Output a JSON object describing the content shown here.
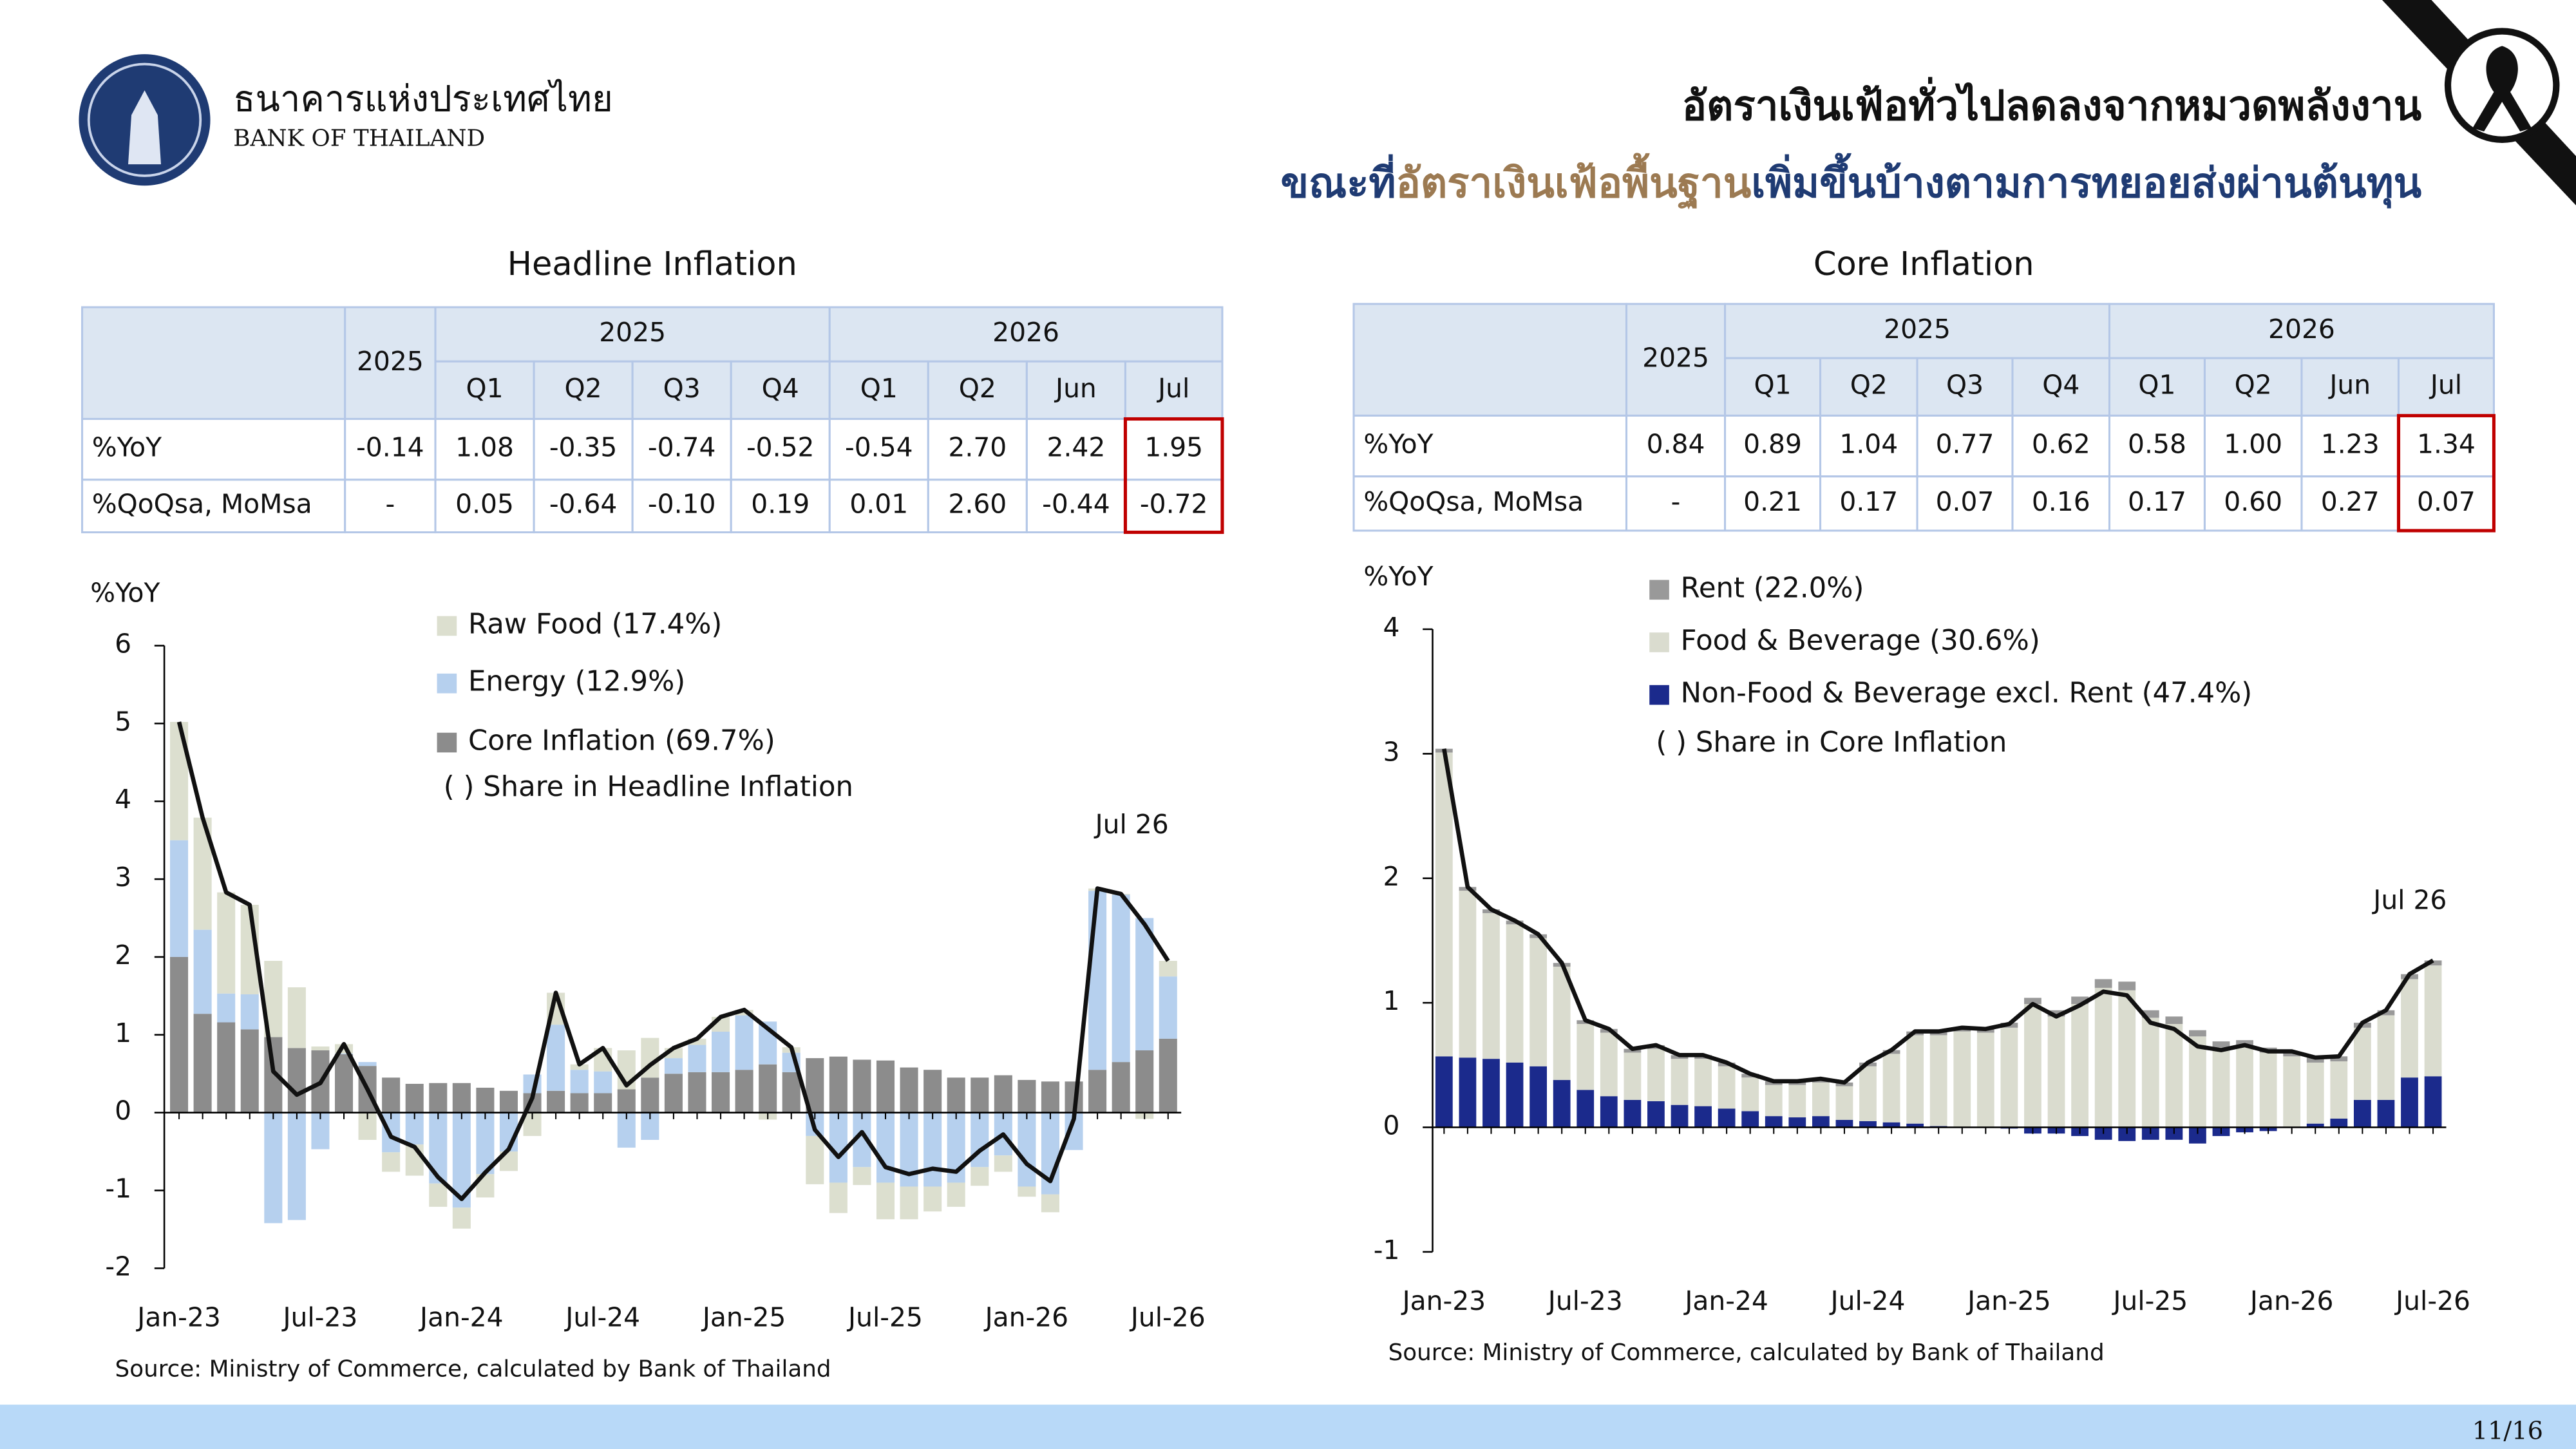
{
  "header": {
    "org_thai": "ธนาคารแห่งประเทศไทย",
    "org_en": "BANK OF THAILAND",
    "title_line1": "อัตราเงินเฟ้อทั่วไปลดลงจากหมวดพลังงาน",
    "title_line2_a": "ขณะที่",
    "title_line2_b": "อัตราเงินเฟ้อพื้นฐาน",
    "title_line2_c": "เพิ่มขึ้นบ้างตามการทยอยส่งผ่านต้นทุน"
  },
  "tables": [
    {
      "title": "Headline Inflation",
      "col0": "2025",
      "groups": [
        "2025",
        "2026"
      ],
      "subcols": [
        "Q1",
        "Q2",
        "Q3",
        "Q4",
        "Q1",
        "Q2",
        "Jun",
        "Jul"
      ],
      "rows": [
        {
          "label": "%YoY",
          "cells": [
            "-0.14",
            "1.08",
            "-0.35",
            "-0.74",
            "-0.52",
            "-0.54",
            "2.70",
            "2.42",
            "1.95"
          ]
        },
        {
          "label": "%QoQsa, MoMsa",
          "cells": [
            "-",
            "0.05",
            "-0.64",
            "-0.10",
            "0.19",
            "0.01",
            "2.60",
            "-0.44",
            "-0.72"
          ]
        }
      ]
    },
    {
      "title": "Core Inflation",
      "col0": "2025",
      "groups": [
        "2025",
        "2026"
      ],
      "subcols": [
        "Q1",
        "Q2",
        "Q3",
        "Q4",
        "Q1",
        "Q2",
        "Jun",
        "Jul"
      ],
      "rows": [
        {
          "label": "%YoY",
          "cells": [
            "0.84",
            "0.89",
            "1.04",
            "0.77",
            "0.62",
            "0.58",
            "1.00",
            "1.23",
            "1.34"
          ]
        },
        {
          "label": "%QoQsa, MoMsa",
          "cells": [
            "-",
            "0.21",
            "0.17",
            "0.07",
            "0.16",
            "0.17",
            "0.60",
            "0.27",
            "0.07"
          ]
        }
      ]
    }
  ],
  "chart_data": [
    {
      "type": "stacked_bar_line",
      "y_label": "%YoY",
      "annotation": "Jul 26",
      "note": "( ) Share in Headline Inflation",
      "source": "Source: Ministry of Commerce, calculated by Bank of Thailand",
      "ylim": [
        -2,
        6
      ],
      "yticks": [
        -2,
        -1,
        0,
        1,
        2,
        3,
        4,
        5,
        6
      ],
      "categories": [
        "Jan-23",
        null,
        null,
        null,
        null,
        null,
        "Jul-23",
        null,
        null,
        null,
        null,
        null,
        "Jan-24",
        null,
        null,
        null,
        null,
        null,
        "Jul-24",
        null,
        null,
        null,
        null,
        null,
        "Jan-25",
        null,
        null,
        null,
        null,
        null,
        "Jul-25",
        null,
        null,
        null,
        null,
        null,
        "Jan-26",
        null,
        null,
        null,
        null,
        null,
        "Jul-26"
      ],
      "series": [
        {
          "name": "Core Inflation (69.7%)",
          "color": "#8c8c8c",
          "values": [
            2.0,
            1.27,
            1.16,
            1.07,
            0.97,
            0.83,
            0.8,
            0.75,
            0.6,
            0.45,
            0.37,
            0.38,
            0.38,
            0.32,
            0.28,
            0.25,
            0.28,
            0.25,
            0.25,
            0.3,
            0.45,
            0.5,
            0.52,
            0.52,
            0.55,
            0.62,
            0.52,
            0.7,
            0.72,
            0.68,
            0.67,
            0.58,
            0.55,
            0.45,
            0.45,
            0.48,
            0.42,
            0.4,
            0.4,
            0.55,
            0.65,
            0.8,
            0.95
          ]
        },
        {
          "name": "Energy (12.9%)",
          "color": "#b6d0ee",
          "values": [
            1.5,
            1.08,
            0.37,
            0.45,
            -1.42,
            -1.38,
            -0.47,
            0.01,
            0.05,
            -0.51,
            -0.41,
            -0.91,
            -1.22,
            -0.79,
            -0.5,
            0.24,
            0.85,
            0.3,
            0.28,
            -0.45,
            -0.35,
            0.2,
            0.35,
            0.52,
            0.7,
            0.55,
            0.25,
            -0.3,
            -0.9,
            -0.7,
            -0.9,
            -0.95,
            -0.95,
            -0.9,
            -0.7,
            -0.55,
            -0.95,
            -1.05,
            -0.48,
            2.3,
            2.15,
            1.7,
            0.8
          ]
        },
        {
          "name": "Raw Food (17.4%)",
          "color": "#dcdfcf",
          "values": [
            1.52,
            1.44,
            1.3,
            1.15,
            0.98,
            0.78,
            0.05,
            0.12,
            -0.35,
            -0.25,
            -0.4,
            -0.3,
            -0.27,
            -0.3,
            -0.25,
            -0.3,
            0.41,
            0.07,
            0.3,
            0.5,
            0.51,
            0.13,
            0.08,
            0.19,
            0.07,
            -0.09,
            0.07,
            -0.62,
            -0.39,
            -0.23,
            -0.47,
            -0.42,
            -0.32,
            -0.31,
            -0.24,
            -0.21,
            -0.13,
            -0.23,
            0.0,
            0.03,
            0.01,
            -0.08,
            0.2
          ]
        }
      ],
      "line": {
        "color": "#111111",
        "values": [
          5.02,
          3.79,
          2.83,
          2.67,
          0.53,
          0.23,
          0.38,
          0.88,
          0.3,
          -0.31,
          -0.44,
          -0.83,
          -1.11,
          -0.77,
          -0.47,
          0.19,
          1.54,
          0.62,
          0.83,
          0.35,
          0.61,
          0.83,
          0.95,
          1.23,
          1.32,
          1.08,
          0.84,
          -0.22,
          -0.57,
          -0.25,
          -0.7,
          -0.79,
          -0.72,
          -0.76,
          -0.49,
          -0.28,
          -0.66,
          -0.88,
          -0.08,
          2.88,
          2.81,
          2.42,
          1.95
        ]
      }
    },
    {
      "type": "stacked_bar_line",
      "y_label": "%YoY",
      "annotation": "Jul 26",
      "note": "( ) Share in Core Inflation",
      "source": "Source: Ministry of Commerce, calculated by Bank of Thailand",
      "ylim": [
        -1,
        4
      ],
      "yticks": [
        -1,
        0,
        1,
        2,
        3,
        4
      ],
      "categories": [
        "Jan-23",
        null,
        null,
        null,
        null,
        null,
        "Jul-23",
        null,
        null,
        null,
        null,
        null,
        "Jan-24",
        null,
        null,
        null,
        null,
        null,
        "Jul-24",
        null,
        null,
        null,
        null,
        null,
        "Jan-25",
        null,
        null,
        null,
        null,
        null,
        "Jul-25",
        null,
        null,
        null,
        null,
        null,
        "Jan-26",
        null,
        null,
        null,
        null,
        null,
        "Jul-26"
      ],
      "series": [
        {
          "name": "Non-Food & Beverage excl. Rent (47.4%)",
          "color": "#1b2a8c",
          "values": [
            0.57,
            0.56,
            0.55,
            0.52,
            0.49,
            0.38,
            0.3,
            0.25,
            0.22,
            0.21,
            0.18,
            0.17,
            0.15,
            0.13,
            0.09,
            0.08,
            0.09,
            0.06,
            0.05,
            0.04,
            0.03,
            0.01,
            0.0,
            0.0,
            -0.01,
            -0.05,
            -0.05,
            -0.07,
            -0.1,
            -0.11,
            -0.1,
            -0.1,
            -0.13,
            -0.07,
            -0.04,
            -0.03,
            0.0,
            0.03,
            0.07,
            0.22,
            0.22,
            0.4,
            0.41
          ]
        },
        {
          "name": "Food & Beverage (30.6%)",
          "color": "#dadccf",
          "values": [
            2.44,
            1.34,
            1.17,
            1.11,
            1.03,
            0.91,
            0.53,
            0.51,
            0.38,
            0.42,
            0.37,
            0.38,
            0.34,
            0.27,
            0.25,
            0.26,
            0.27,
            0.27,
            0.44,
            0.55,
            0.71,
            0.73,
            0.77,
            0.76,
            0.8,
            0.99,
            0.89,
            0.99,
            1.12,
            1.1,
            0.88,
            0.83,
            0.73,
            0.64,
            0.65,
            0.6,
            0.57,
            0.49,
            0.46,
            0.58,
            0.68,
            0.79,
            0.89
          ]
        },
        {
          "name": "Rent (22.0%)",
          "color": "#999999",
          "values": [
            0.03,
            0.03,
            0.03,
            0.03,
            0.03,
            0.03,
            0.03,
            0.03,
            0.03,
            0.03,
            0.03,
            0.03,
            0.03,
            0.03,
            0.03,
            0.03,
            0.03,
            0.03,
            0.03,
            0.03,
            0.03,
            0.03,
            0.03,
            0.03,
            0.04,
            0.05,
            0.05,
            0.06,
            0.07,
            0.07,
            0.06,
            0.06,
            0.05,
            0.05,
            0.05,
            0.04,
            0.04,
            0.04,
            0.04,
            0.04,
            0.04,
            0.04,
            0.04
          ]
        }
      ],
      "line": {
        "color": "#111111",
        "values": [
          3.04,
          1.93,
          1.75,
          1.66,
          1.55,
          1.32,
          0.86,
          0.79,
          0.63,
          0.66,
          0.58,
          0.58,
          0.52,
          0.43,
          0.37,
          0.37,
          0.39,
          0.36,
          0.52,
          0.62,
          0.77,
          0.77,
          0.8,
          0.79,
          0.83,
          0.99,
          0.89,
          0.98,
          1.09,
          1.06,
          0.84,
          0.79,
          0.65,
          0.62,
          0.66,
          0.61,
          0.61,
          0.56,
          0.57,
          0.84,
          0.94,
          1.23,
          1.34
        ]
      }
    }
  ],
  "page_number": "11/16"
}
